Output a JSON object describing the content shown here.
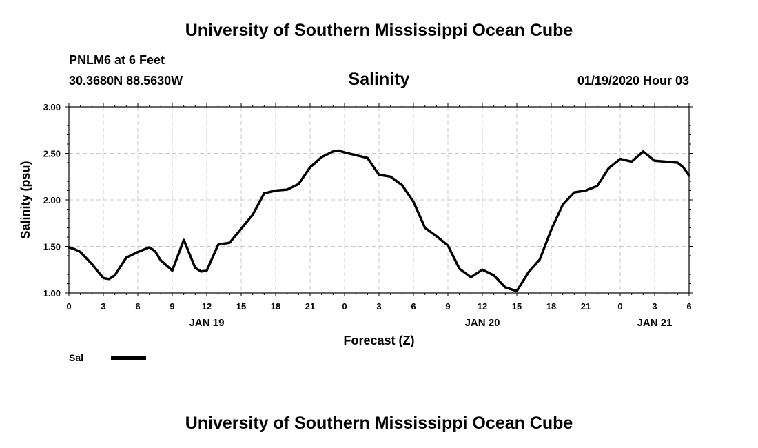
{
  "header": {
    "top_title": "University of Southern Mississippi Ocean Cube",
    "station": "PNLM6 at 6 Feet",
    "coords": "30.3680N 88.5630W",
    "chart_title": "Salinity",
    "timestamp": "01/19/2020 Hour 03"
  },
  "footer": {
    "bottom_title": "University of Southern Mississippi Ocean Cube"
  },
  "colors": {
    "line": "#000000",
    "grid": "#c8c8c8"
  },
  "chart_data": {
    "type": "line",
    "title": "Salinity",
    "xlabel": "Forecast (Z)",
    "ylabel": "Salinity (psu)",
    "xlim": [
      0,
      54
    ],
    "ylim": [
      1.0,
      3.0
    ],
    "x_ticks": [
      0,
      3,
      6,
      9,
      12,
      15,
      18,
      21,
      24,
      27,
      30,
      33,
      36,
      39,
      42,
      45,
      48,
      51,
      54
    ],
    "x_tick_labels": [
      "0",
      "3",
      "6",
      "9",
      "12",
      "15",
      "18",
      "21",
      "0",
      "3",
      "6",
      "9",
      "12",
      "15",
      "18",
      "21",
      "0",
      "3",
      "6"
    ],
    "y_ticks": [
      1.0,
      1.5,
      2.0,
      2.5,
      3.0
    ],
    "y_tick_labels": [
      "1.00",
      "1.50",
      "2.00",
      "2.50",
      "3.00"
    ],
    "day_labels": [
      {
        "label": "JAN 19",
        "x": 12
      },
      {
        "label": "JAN 20",
        "x": 36
      },
      {
        "label": "JAN 21",
        "x": 51
      }
    ],
    "grid": true,
    "series": [
      {
        "name": "Sal",
        "x": [
          0,
          0.5,
          1,
          2,
          3,
          3.5,
          4,
          5,
          6,
          7,
          7.5,
          8,
          9,
          10,
          11,
          11.5,
          12,
          13,
          14,
          15,
          16,
          17,
          18,
          19,
          20,
          21,
          22,
          23,
          23.5,
          24,
          25,
          26,
          27,
          28,
          29,
          30,
          31,
          32,
          33,
          34,
          35,
          36,
          37,
          38,
          39,
          40,
          41,
          42,
          43,
          44,
          45,
          46,
          47,
          48,
          49,
          50,
          51,
          52,
          53,
          53.5,
          54
        ],
        "values": [
          1.49,
          1.47,
          1.44,
          1.31,
          1.16,
          1.15,
          1.19,
          1.38,
          1.44,
          1.49,
          1.45,
          1.35,
          1.24,
          1.57,
          1.27,
          1.23,
          1.24,
          1.52,
          1.54,
          1.69,
          1.84,
          2.07,
          2.1,
          2.11,
          2.17,
          2.35,
          2.46,
          2.52,
          2.53,
          2.51,
          2.48,
          2.45,
          2.27,
          2.25,
          2.16,
          1.98,
          1.7,
          1.61,
          1.51,
          1.26,
          1.17,
          1.25,
          1.19,
          1.06,
          1.02,
          1.22,
          1.36,
          1.68,
          1.95,
          2.08,
          2.1,
          2.15,
          2.34,
          2.44,
          2.41,
          2.52,
          2.42,
          2.41,
          2.4,
          2.35,
          2.26
        ]
      }
    ],
    "legend": [
      {
        "label": "Sal"
      }
    ]
  }
}
